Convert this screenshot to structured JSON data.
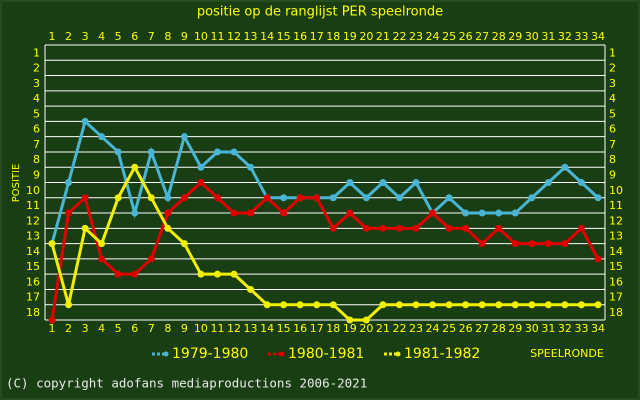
{
  "chart_data": {
    "type": "line",
    "title": "positie op de ranglijst PER speelronde",
    "y_label": "POSITIE",
    "x_label": "SPEELRONDE",
    "footer": "(C) copyright adofans mediaproductions 2006-2021",
    "x": [
      1,
      2,
      3,
      4,
      5,
      6,
      7,
      8,
      9,
      10,
      11,
      12,
      13,
      14,
      15,
      16,
      17,
      18,
      19,
      20,
      21,
      22,
      23,
      24,
      25,
      26,
      27,
      28,
      29,
      30,
      31,
      32,
      33,
      34
    ],
    "xlim": [
      1,
      34
    ],
    "xticks": [
      1,
      2,
      3,
      4,
      5,
      6,
      7,
      8,
      9,
      10,
      11,
      12,
      13,
      14,
      15,
      16,
      17,
      18,
      19,
      20,
      21,
      22,
      23,
      24,
      25,
      26,
      27,
      28,
      29,
      30,
      31,
      32,
      33,
      34
    ],
    "ylim": [
      18,
      0
    ],
    "yticks": [
      1,
      2,
      3,
      4,
      5,
      6,
      7,
      8,
      9,
      10,
      11,
      12,
      13,
      14,
      15,
      16,
      17,
      18
    ],
    "y_inverted": true,
    "grid": true,
    "series": [
      {
        "name": "1979-1980",
        "color": "#4ab4d4",
        "values": [
          13,
          9,
          5,
          6,
          7,
          11,
          7,
          10,
          6,
          8,
          7,
          7,
          8,
          10,
          10,
          10,
          10,
          10,
          9,
          10,
          9,
          10,
          9,
          11,
          10,
          11,
          11,
          11,
          11,
          10,
          9,
          8,
          9,
          10
        ]
      },
      {
        "name": "1980-1981",
        "color": "#e00000",
        "values": [
          18,
          11,
          10,
          14,
          15,
          15,
          14,
          11,
          10,
          9,
          10,
          11,
          11,
          10,
          11,
          10,
          10,
          12,
          11,
          12,
          12,
          12,
          12,
          11,
          12,
          12,
          13,
          12,
          13,
          13,
          13,
          13,
          12,
          14
        ]
      },
      {
        "name": "1981-1982",
        "color": "#f0f000",
        "values": [
          13,
          17,
          12,
          13,
          10,
          8,
          10,
          12,
          13,
          15,
          15,
          15,
          16,
          17,
          17,
          17,
          17,
          17,
          18,
          18,
          17,
          17,
          17,
          17,
          17,
          17,
          17,
          17,
          17,
          17,
          17,
          17,
          17,
          17
        ]
      }
    ]
  }
}
